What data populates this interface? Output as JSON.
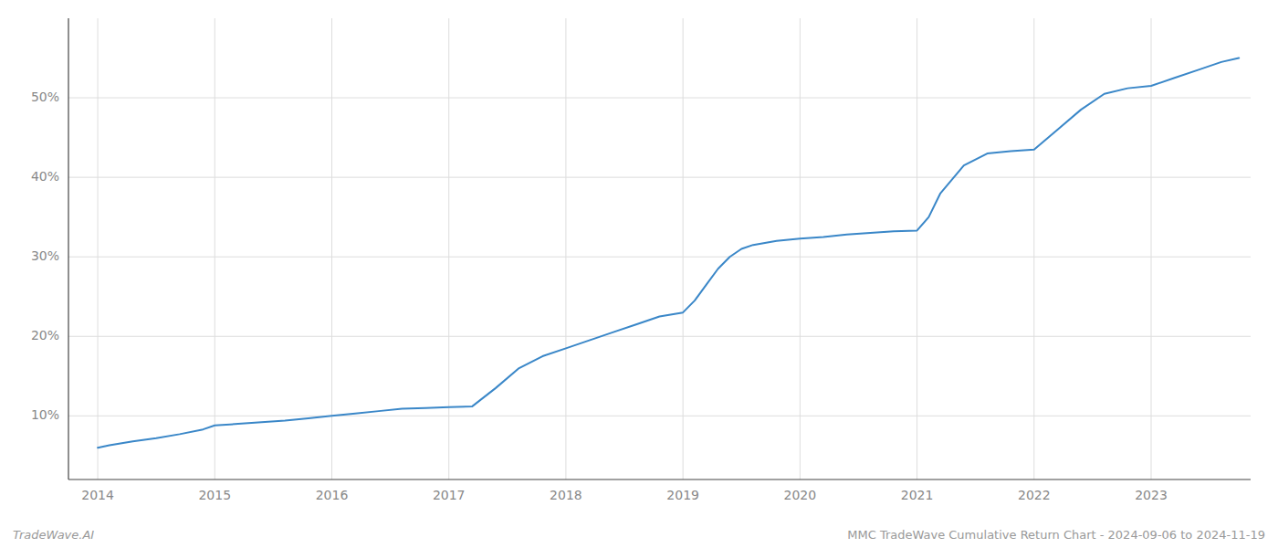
{
  "chart_data": {
    "type": "line",
    "x": [
      2014.0,
      2014.1,
      2014.3,
      2014.5,
      2014.7,
      2014.9,
      2015.0,
      2015.2,
      2015.4,
      2015.6,
      2015.8,
      2016.0,
      2016.2,
      2016.4,
      2016.6,
      2016.8,
      2017.0,
      2017.2,
      2017.4,
      2017.6,
      2017.8,
      2018.0,
      2018.2,
      2018.4,
      2018.6,
      2018.8,
      2019.0,
      2019.1,
      2019.2,
      2019.3,
      2019.4,
      2019.5,
      2019.6,
      2019.8,
      2020.0,
      2020.2,
      2020.4,
      2020.6,
      2020.8,
      2021.0,
      2021.1,
      2021.2,
      2021.4,
      2021.6,
      2021.8,
      2022.0,
      2022.2,
      2022.4,
      2022.6,
      2022.8,
      2023.0,
      2023.2,
      2023.4,
      2023.6,
      2023.75
    ],
    "values": [
      6.0,
      6.3,
      6.8,
      7.2,
      7.7,
      8.3,
      8.8,
      9.0,
      9.2,
      9.4,
      9.7,
      10.0,
      10.3,
      10.6,
      10.9,
      11.0,
      11.1,
      11.2,
      13.5,
      16.0,
      17.5,
      18.5,
      19.5,
      20.5,
      21.5,
      22.5,
      23.0,
      24.5,
      26.5,
      28.5,
      30.0,
      31.0,
      31.5,
      32.0,
      32.3,
      32.5,
      32.8,
      33.0,
      33.2,
      33.3,
      35.0,
      38.0,
      41.5,
      43.0,
      43.3,
      43.5,
      46.0,
      48.5,
      50.5,
      51.2,
      51.5,
      52.5,
      53.5,
      54.5,
      55.0
    ],
    "color": "#3a87c8",
    "xlim": [
      2013.75,
      2023.85
    ],
    "xticks": [
      2014,
      2015,
      2016,
      2017,
      2018,
      2019,
      2020,
      2021,
      2022,
      2023
    ],
    "ylim": [
      2,
      60
    ],
    "yticks": [
      {
        "value": 10,
        "label": "10%"
      },
      {
        "value": 20,
        "label": "20%"
      },
      {
        "value": 30,
        "label": "30%"
      },
      {
        "value": 40,
        "label": "40%"
      },
      {
        "value": 50,
        "label": "50%"
      }
    ],
    "grid": true,
    "annotations": [
      "TradeWave.AI",
      "MMC TradeWave Cumulative Return Chart - 2024-09-06 to 2024-11-19"
    ]
  }
}
